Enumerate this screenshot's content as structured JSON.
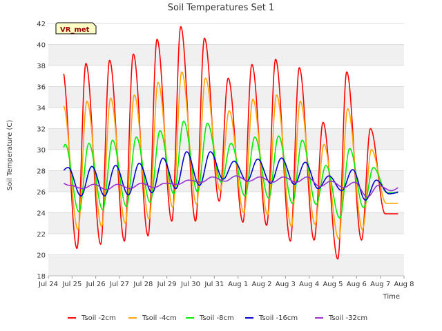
{
  "chart_data": {
    "type": "line",
    "title": "Soil Temperatures Set 1",
    "xlabel": "Time",
    "ylabel": "Soil Temperature (C)",
    "badge": "VR_met",
    "ylim": [
      18,
      42
    ],
    "xlim": [
      "Jul 24",
      "Aug 8"
    ],
    "x_ticks": [
      "Jul 24",
      "Jul 25",
      "Jul 26",
      "Jul 27",
      "Jul 28",
      "Jul 29",
      "Jul 30",
      "Jul 31",
      "Aug 1",
      "Aug 2",
      "Aug 3",
      "Aug 4",
      "Aug 5",
      "Aug 6",
      "Aug 7",
      "Aug 8"
    ],
    "y_ticks": [
      18,
      20,
      22,
      24,
      26,
      28,
      30,
      32,
      34,
      36,
      38,
      40,
      42
    ],
    "grid": true,
    "legend_position": "bottom",
    "series": [
      {
        "name": "Tsoil -2cm",
        "color": "#ff0000",
        "mins": [
          20.7,
          20.6,
          21.0,
          21.3,
          21.8,
          23.2,
          23.2,
          25.1,
          23.1,
          22.8,
          21.3,
          21.4,
          19.6,
          21.4,
          23.9
        ],
        "maxes": [
          37.7,
          38.2,
          38.5,
          39.1,
          40.5,
          41.7,
          40.6,
          36.8,
          38.1,
          38.6,
          37.8,
          32.6,
          37.4,
          32.0
        ]
      },
      {
        "name": "Tsoil -4cm",
        "color": "#ffa500",
        "mins": [
          22.4,
          22.4,
          22.7,
          23.0,
          23.4,
          24.5,
          24.8,
          26.1,
          24.0,
          23.8,
          22.7,
          22.9,
          21.5,
          22.4,
          24.9
        ],
        "maxes": [
          34.2,
          34.6,
          34.9,
          35.2,
          36.4,
          37.4,
          36.8,
          33.7,
          34.8,
          35.2,
          34.6,
          30.5,
          33.9,
          30.0
        ]
      },
      {
        "name": "Tsoil -8cm",
        "color": "#00ee00",
        "mins": [
          24.2,
          24.1,
          24.3,
          24.6,
          25.0,
          25.8,
          26.0,
          26.9,
          25.6,
          25.4,
          24.9,
          24.8,
          23.5,
          24.5,
          25.9
        ],
        "maxes": [
          30.5,
          30.6,
          30.9,
          31.2,
          31.8,
          32.7,
          32.5,
          30.6,
          31.2,
          31.3,
          30.9,
          28.5,
          30.1,
          28.3
        ]
      },
      {
        "name": "Tsoil -16cm",
        "color": "#0000cc",
        "mins": [
          27.5,
          25.6,
          25.6,
          25.7,
          25.9,
          26.3,
          26.6,
          27.2,
          27.0,
          26.8,
          26.7,
          26.3,
          26.1,
          25.2,
          25.8,
          26.4
        ],
        "maxes": [
          28.3,
          28.4,
          28.5,
          28.7,
          29.2,
          29.8,
          29.8,
          28.9,
          29.1,
          29.2,
          28.8,
          27.5,
          28.1,
          27.1
        ]
      },
      {
        "name": "Tsoil -32cm",
        "color": "#9932cc",
        "mins": [
          26.9,
          26.3,
          26.2,
          26.3,
          26.4,
          26.7,
          26.9,
          27.0,
          27.0,
          26.9,
          26.9,
          26.5,
          26.4,
          25.5,
          26.1,
          26.4
        ],
        "maxes": [
          26.6,
          26.7,
          26.7,
          26.8,
          26.8,
          27.1,
          27.4,
          27.5,
          27.4,
          27.4,
          27.4,
          27.0,
          26.9,
          26.6,
          26.5
        ]
      }
    ]
  }
}
